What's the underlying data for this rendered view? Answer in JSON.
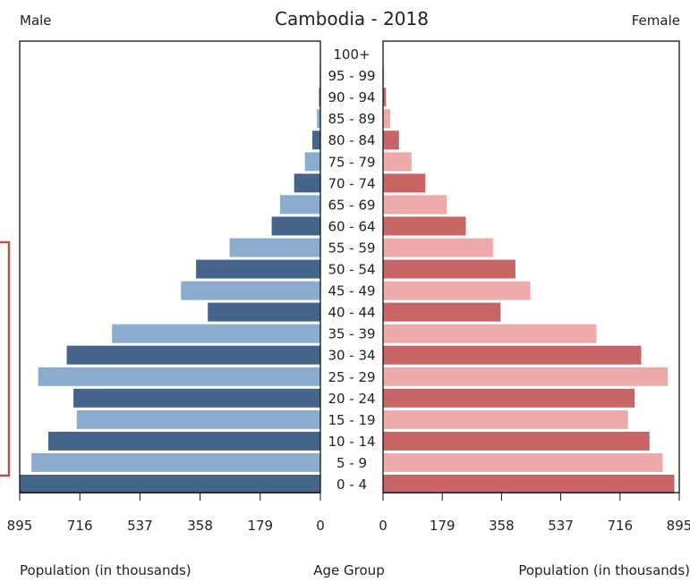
{
  "chart_data": {
    "type": "bar",
    "orientation": "horizontal",
    "title": "Cambodia - 2018",
    "left_label": "Male",
    "right_label": "Female",
    "center_axis_label": "Age Group",
    "left_axis_label": "Population (in thousands)",
    "right_axis_label": "Population (in thousands)",
    "categories": [
      "0 - 4",
      "5 - 9",
      "10 - 14",
      "15 - 19",
      "20 - 24",
      "25 - 29",
      "30 - 34",
      "35 - 39",
      "40 - 44",
      "45 - 49",
      "50 - 54",
      "55 - 59",
      "60 - 64",
      "65 - 69",
      "70 - 74",
      "75 - 79",
      "80 - 84",
      "85 - 89",
      "90 - 94",
      "95 - 99",
      "100+"
    ],
    "series": [
      {
        "name": "Male",
        "values": [
          895,
          860,
          810,
          725,
          735,
          840,
          755,
          620,
          335,
          415,
          370,
          270,
          145,
          120,
          78,
          46,
          24,
          10,
          4,
          2,
          1
        ],
        "colors": [
          "#44648a",
          "#8aaccf"
        ]
      },
      {
        "name": "Female",
        "values": [
          880,
          845,
          805,
          740,
          760,
          860,
          780,
          645,
          355,
          445,
          400,
          332,
          250,
          192,
          128,
          86,
          48,
          22,
          9,
          3,
          1
        ],
        "colors": [
          "#c96464",
          "#eeaaaa"
        ]
      }
    ],
    "xlim": [
      0,
      895
    ],
    "ticks": [
      "895",
      "716",
      "537",
      "358",
      "179",
      "0"
    ],
    "ticks_right": [
      "0",
      "179",
      "358",
      "537",
      "716",
      "895"
    ],
    "tick_values": [
      0,
      179,
      358,
      537,
      716,
      895
    ],
    "grid": false,
    "legend": "none"
  }
}
